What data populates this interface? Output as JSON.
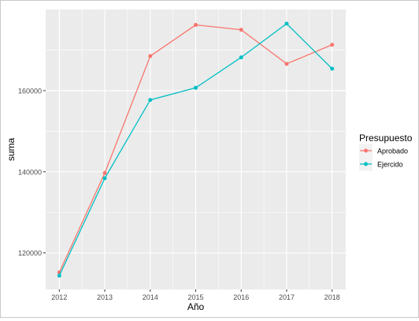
{
  "chart_data": {
    "type": "line",
    "xlabel": "Año",
    "ylabel": "suma",
    "x": [
      2012,
      2013,
      2014,
      2015,
      2016,
      2017,
      2018
    ],
    "xlim": [
      2011.7,
      2018.3
    ],
    "ylim": [
      111000,
      180000
    ],
    "y_ticks": [
      120000,
      140000,
      160000
    ],
    "y_tick_labels": [
      "120000",
      "140000",
      "160000"
    ],
    "x_tick_labels": [
      "2012",
      "2013",
      "2014",
      "2015",
      "2016",
      "2017",
      "2018"
    ],
    "grid": true,
    "panel_background": "#EBEBEB",
    "legend": {
      "title": "Presupuesto",
      "placement": "right",
      "entries": [
        "Aprobado",
        "Ejercido"
      ]
    },
    "series": [
      {
        "name": "Aprobado",
        "color": "#F8766D",
        "values": [
          115200,
          139700,
          168500,
          176200,
          175000,
          166600,
          171300
        ]
      },
      {
        "name": "Ejercido",
        "color": "#00BFC4",
        "values": [
          114400,
          138400,
          157700,
          160700,
          168200,
          176500,
          165400
        ]
      }
    ]
  }
}
